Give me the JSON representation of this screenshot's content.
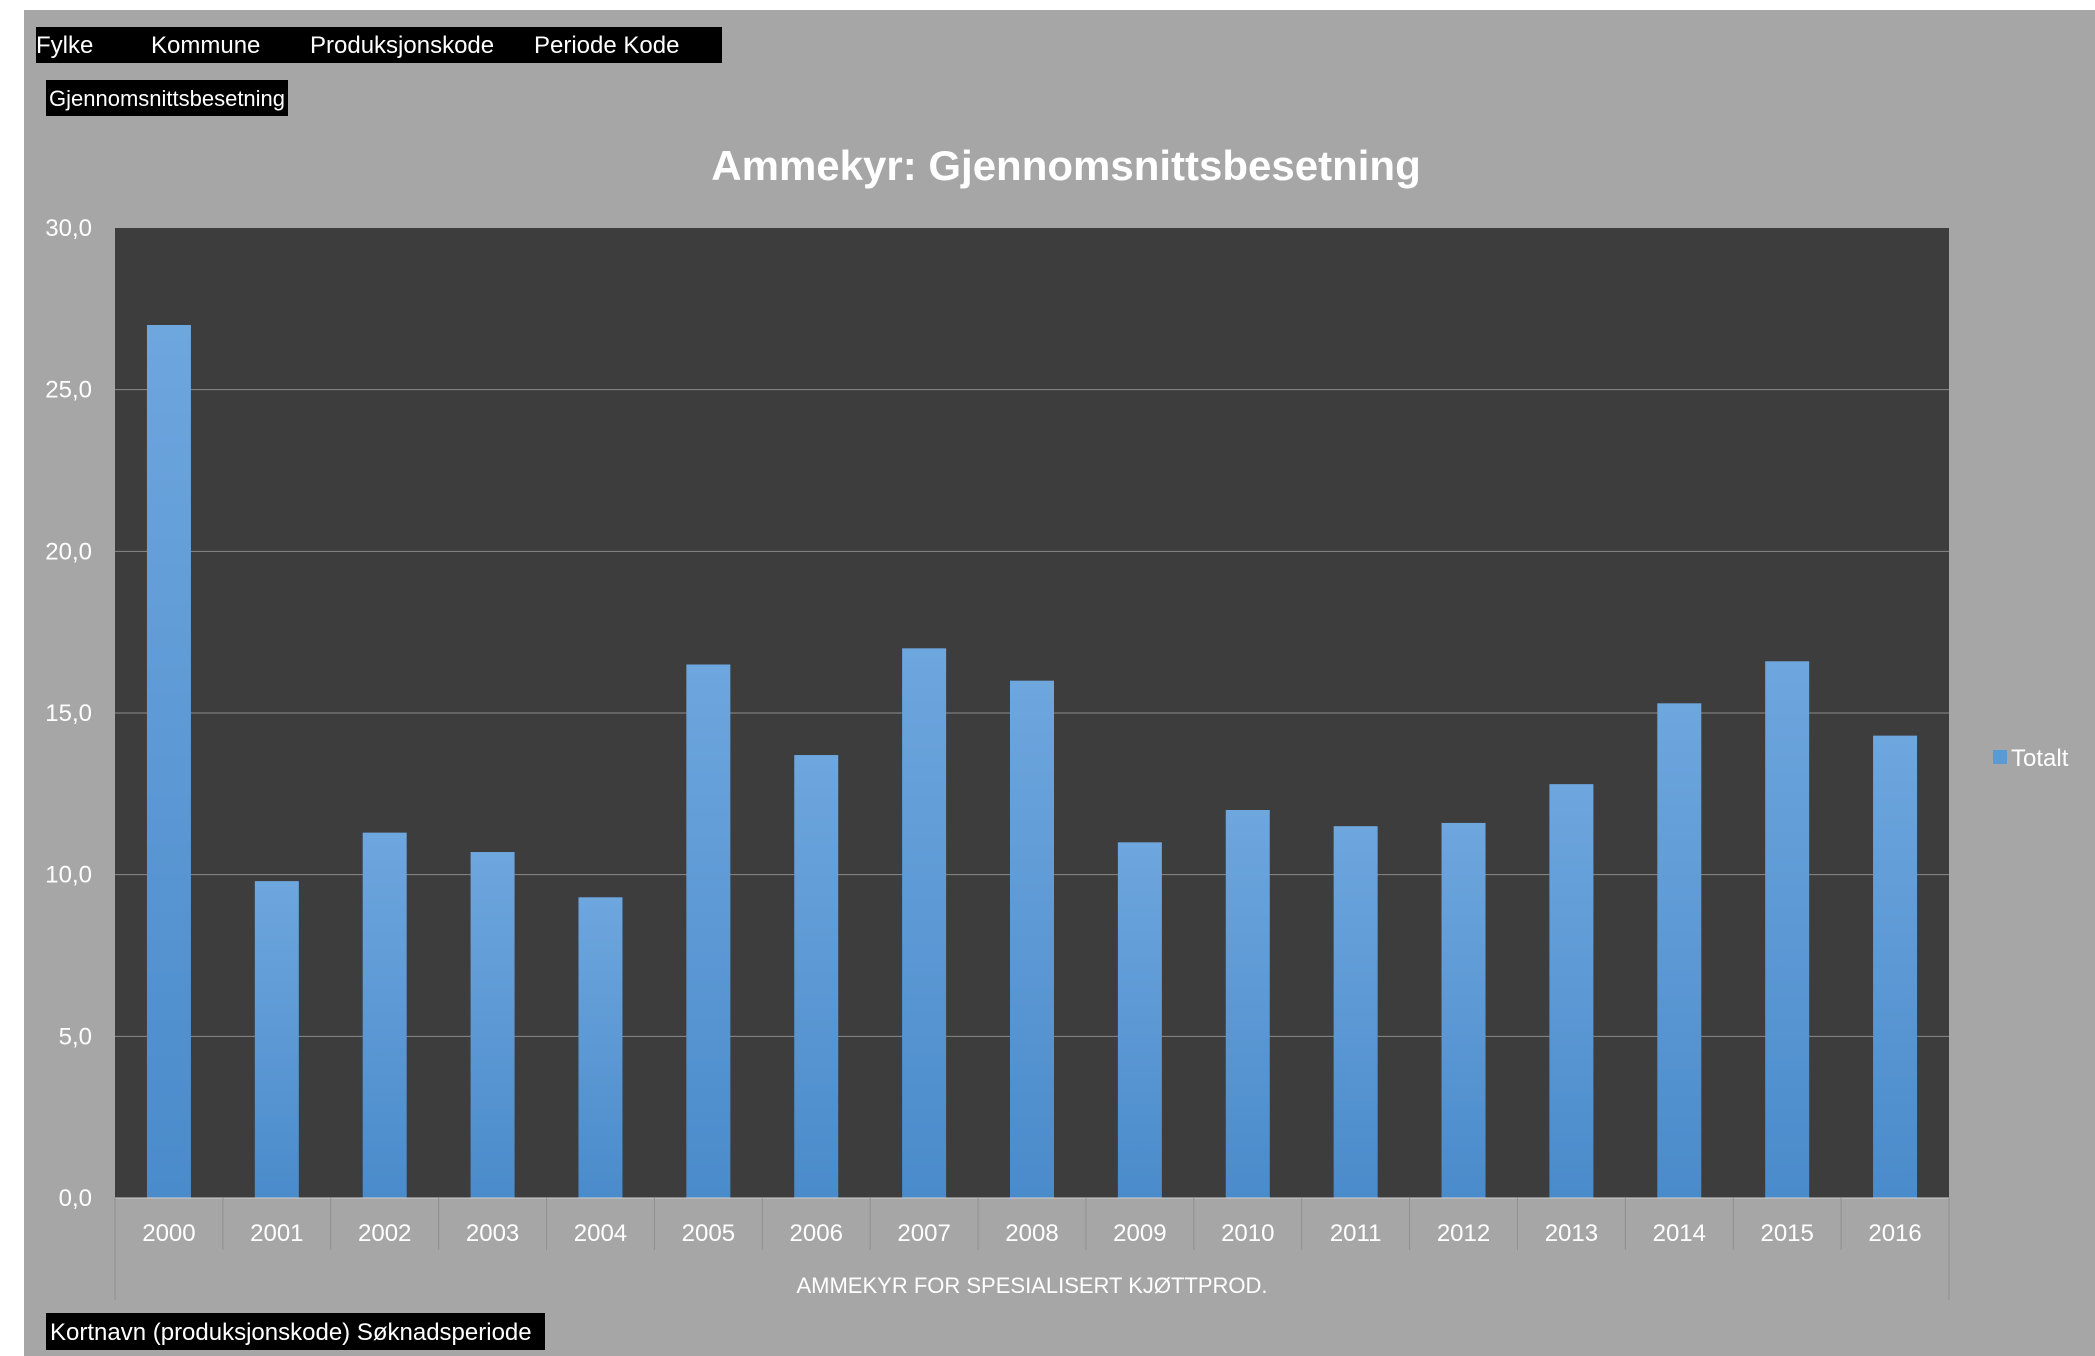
{
  "filters": {
    "fylke": "Fylke",
    "kommune": "Kommune",
    "produksjonskode": "Produksjonskode",
    "periode_kode": "Periode Kode"
  },
  "value_field": "Gjennomsnittsbesetning",
  "axis_fields": "Kortnavn (produksjonskode) Søknadsperiode",
  "colors": {
    "background": "#a6a6a6",
    "plot": "#3d3d3d",
    "bar": "#5b9bd5",
    "grid": "#888888"
  },
  "chart_data": {
    "type": "bar",
    "title": "Ammekyr: Gjennomsnittsbesetning",
    "xlabel": "AMMEKYR FOR SPESIALISERT KJØTTPROD.",
    "ylabel": "",
    "ylim": [
      0,
      30
    ],
    "yticks": [
      "0,0",
      "5,0",
      "10,0",
      "15,0",
      "20,0",
      "25,0",
      "30,0"
    ],
    "categories": [
      "2000",
      "2001",
      "2002",
      "2003",
      "2004",
      "2005",
      "2006",
      "2007",
      "2008",
      "2009",
      "2010",
      "2011",
      "2012",
      "2013",
      "2014",
      "2015",
      "2016"
    ],
    "series": [
      {
        "name": "Totalt",
        "values": [
          27.0,
          9.8,
          11.3,
          10.7,
          9.3,
          16.5,
          13.7,
          17.0,
          16.0,
          11.0,
          12.0,
          11.5,
          11.6,
          12.8,
          15.3,
          16.6,
          14.3
        ]
      }
    ],
    "grid": true,
    "legend": "right"
  }
}
